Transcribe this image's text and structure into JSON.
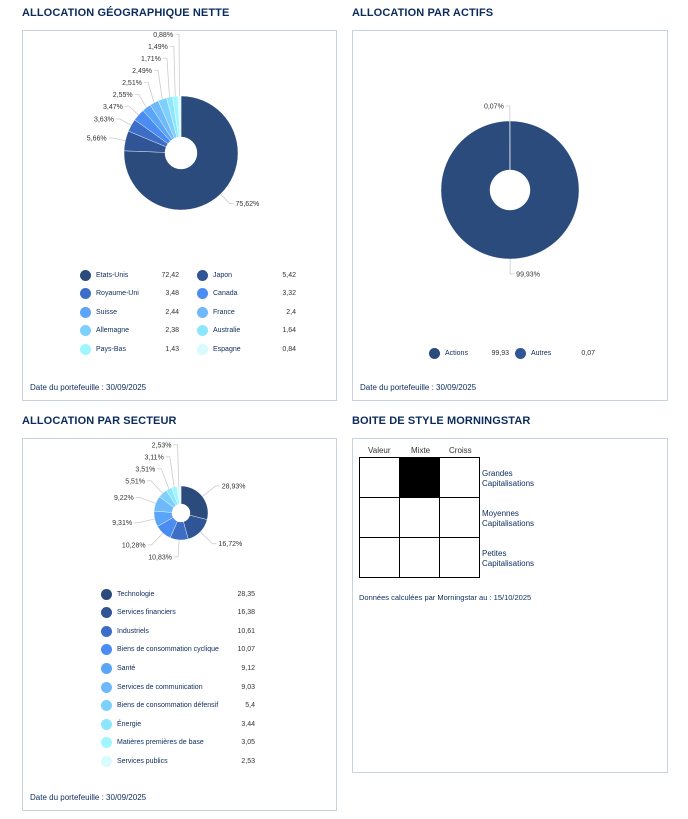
{
  "palette": [
    "#2a4b7c",
    "#2f5596",
    "#3b6ec4",
    "#4a8cf2",
    "#5ba5f8",
    "#6db9fa",
    "#7ed0fc",
    "#8de6fd",
    "#9ff6fe",
    "#dafbfe"
  ],
  "geo": {
    "title": "ALLOCATION GÉOGRAPHIQUE NETTE",
    "date": "Date du portefeuille : 30/09/2025",
    "chart_labels": [
      "75,62%",
      "5,66%",
      "3,63%",
      "3,47%",
      "2,55%",
      "2,51%",
      "2,49%",
      "1,71%",
      "1,49%",
      "0,88%"
    ],
    "legend": [
      {
        "name": "Etats-Unis",
        "value": "72,42"
      },
      {
        "name": "Japon",
        "value": "5,42"
      },
      {
        "name": "Royaume-Uni",
        "value": "3,48"
      },
      {
        "name": "Canada",
        "value": "3,32"
      },
      {
        "name": "Suisse",
        "value": "2,44"
      },
      {
        "name": "France",
        "value": "2,4"
      },
      {
        "name": "Allemagne",
        "value": "2,38"
      },
      {
        "name": "Australie",
        "value": "1,64"
      },
      {
        "name": "Pays-Bas",
        "value": "1,43"
      },
      {
        "name": "Espagne",
        "value": "0,84"
      }
    ]
  },
  "assets": {
    "title": "ALLOCATION PAR ACTIFS",
    "date": "Date du portefeuille : 30/09/2025",
    "chart_labels": [
      "99,93%",
      "0,07%"
    ],
    "legend": [
      {
        "name": "Actions",
        "value": "99,93"
      },
      {
        "name": "Autres",
        "value": "0,07"
      }
    ]
  },
  "sector": {
    "title": "ALLOCATION PAR SECTEUR",
    "date": "Date du portefeuille : 30/09/2025",
    "chart_labels": [
      "28,93%",
      "16,72%",
      "10,83%",
      "10,28%",
      "9,31%",
      "9,22%",
      "5,51%",
      "3,51%",
      "3,11%",
      "2,53%"
    ],
    "legend": [
      {
        "name": "Technologie",
        "value": "28,35"
      },
      {
        "name": "Services financiers",
        "value": "16,38"
      },
      {
        "name": "Industriels",
        "value": "10,61"
      },
      {
        "name": "Biens de consommation cyclique",
        "value": "10,07"
      },
      {
        "name": "Santé",
        "value": "9,12"
      },
      {
        "name": "Services de communication",
        "value": "9,03"
      },
      {
        "name": "Biens de consommation défensif",
        "value": "5,4"
      },
      {
        "name": "Énergie",
        "value": "3,44"
      },
      {
        "name": "Matières premières de base",
        "value": "3,05"
      },
      {
        "name": "Services publics",
        "value": "2,53"
      }
    ]
  },
  "morningstar": {
    "title": "BOITE DE STYLE MORNINGSTAR",
    "columns": [
      "Valeur",
      "Mixte",
      "Croiss"
    ],
    "rows": [
      [
        "Grandes",
        "Capitalisations"
      ],
      [
        "Moyennes",
        "Capitalisations"
      ],
      [
        "Petites",
        "Capitalisations"
      ]
    ],
    "highlight": {
      "row": 0,
      "col": 1
    },
    "note": "Données calculées par Morningstar au : 15/10/2025"
  },
  "chart_data": [
    {
      "type": "pie",
      "title": "ALLOCATION GÉOGRAPHIQUE NETTE",
      "categories": [
        "Etats-Unis",
        "Japon",
        "Royaume-Uni",
        "Canada",
        "Suisse",
        "France",
        "Allemagne",
        "Australie",
        "Pays-Bas",
        "Espagne"
      ],
      "values": [
        75.62,
        5.66,
        3.63,
        3.47,
        2.55,
        2.51,
        2.49,
        1.71,
        1.49,
        0.88
      ]
    },
    {
      "type": "pie",
      "title": "ALLOCATION PAR ACTIFS",
      "categories": [
        "Actions",
        "Autres"
      ],
      "values": [
        99.93,
        0.07
      ]
    },
    {
      "type": "pie",
      "title": "ALLOCATION PAR SECTEUR",
      "categories": [
        "Technologie",
        "Services financiers",
        "Industriels",
        "Biens de consommation cyclique",
        "Santé",
        "Services de communication",
        "Biens de consommation défensif",
        "Énergie",
        "Matières premières de base",
        "Services publics"
      ],
      "values": [
        28.93,
        16.72,
        10.83,
        10.28,
        9.31,
        9.22,
        5.51,
        3.51,
        3.11,
        2.53
      ]
    }
  ]
}
